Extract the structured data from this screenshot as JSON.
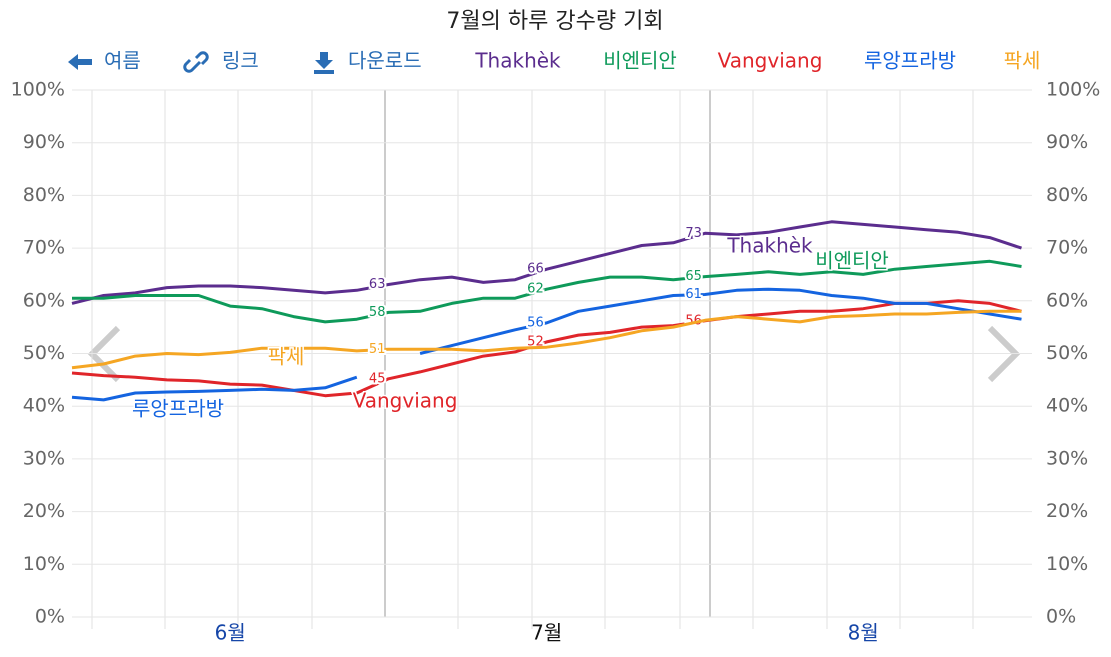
{
  "toolbar": {
    "back": "여름",
    "link": "링크",
    "download": "다운로드"
  },
  "chart_data": {
    "type": "line",
    "title": "7월의 하루 강수량 기회",
    "categories": [
      null,
      null,
      null,
      null,
      null,
      "6월",
      null,
      null,
      null,
      null,
      null,
      null,
      null,
      null,
      null,
      "7월",
      null,
      null,
      null,
      null,
      null,
      null,
      null,
      null,
      null,
      "8월",
      null,
      null,
      null,
      null,
      null
    ],
    "ylim": [
      0,
      100
    ],
    "yticks": [
      {
        "value": 0,
        "label": "0%"
      },
      {
        "value": 10,
        "label": "10%"
      },
      {
        "value": 20,
        "label": "20%"
      },
      {
        "value": 30,
        "label": "30%"
      },
      {
        "value": 40,
        "label": "40%"
      },
      {
        "value": 50,
        "label": "50%"
      },
      {
        "value": 60,
        "label": "60%"
      },
      {
        "value": 70,
        "label": "70%"
      },
      {
        "value": 80,
        "label": "80%"
      },
      {
        "value": 90,
        "label": "90%"
      },
      {
        "value": 100,
        "label": "100%"
      }
    ],
    "grid": true,
    "series": [
      {
        "name": "Thakhèk",
        "color": "#5b2d8e",
        "values": [
          59.5,
          61,
          61.5,
          62.5,
          62.8,
          62.8,
          62.5,
          62,
          61.5,
          62,
          63.1,
          64,
          64.5,
          63.5,
          64,
          66,
          67.5,
          69,
          70.5,
          71,
          72.8,
          72.5,
          73,
          74,
          75,
          74.5,
          74,
          73.5,
          73,
          72,
          70
        ],
        "value_labels": [
          null,
          null,
          null,
          null,
          null,
          null,
          null,
          null,
          null,
          null,
          "63",
          null,
          null,
          null,
          null,
          "66",
          null,
          null,
          null,
          null,
          "73",
          null,
          null,
          null,
          null,
          null,
          null,
          null,
          null,
          null,
          null
        ]
      },
      {
        "name": "비엔티안",
        "color": "#0e9a5a",
        "values": [
          60.5,
          60.5,
          61,
          61,
          61,
          59,
          58.5,
          57,
          56,
          56.5,
          57.8,
          58,
          59.5,
          60.5,
          60.5,
          62.2,
          63.5,
          64.5,
          64.5,
          64,
          64.6,
          65,
          65.5,
          65,
          65.5,
          65,
          66,
          66.5,
          67,
          67.5,
          66.5
        ],
        "value_labels": [
          null,
          null,
          null,
          null,
          null,
          null,
          null,
          null,
          null,
          null,
          "58",
          null,
          null,
          null,
          null,
          "62",
          null,
          null,
          null,
          null,
          "65",
          null,
          null,
          null,
          null,
          null,
          null,
          null,
          null,
          null,
          null
        ]
      },
      {
        "name": "Vangviang",
        "color": "#e0252a",
        "values": [
          46.3,
          45.8,
          45.5,
          45,
          44.8,
          44.2,
          44,
          43,
          42,
          42.5,
          45.2,
          46.5,
          48,
          49.5,
          50.3,
          52.2,
          53.5,
          54,
          55,
          55.3,
          56.2,
          57,
          57.5,
          58,
          58,
          58.5,
          59.5,
          59.5,
          60,
          59.5,
          58
        ],
        "value_labels": [
          null,
          null,
          null,
          null,
          null,
          null,
          null,
          null,
          null,
          null,
          "45",
          null,
          null,
          null,
          null,
          "52",
          null,
          null,
          null,
          null,
          "56",
          null,
          null,
          null,
          null,
          null,
          null,
          null,
          null,
          null,
          null
        ]
      },
      {
        "name": "루앙프라방",
        "color": "#1464e0",
        "values": [
          41.7,
          41.2,
          42.5,
          42.7,
          42.8,
          43,
          43.2,
          43,
          43.5,
          45.5,
          null,
          50,
          51.5,
          53,
          54.5,
          55.8,
          58,
          59,
          60,
          61,
          61.2,
          62,
          62.2,
          62,
          61,
          60.5,
          59.5,
          59.5,
          58.5,
          57.5,
          56.5
        ],
        "value_labels": [
          null,
          null,
          null,
          null,
          null,
          null,
          null,
          null,
          null,
          null,
          null,
          null,
          null,
          null,
          null,
          "56",
          null,
          null,
          null,
          null,
          "61",
          null,
          null,
          null,
          null,
          null,
          null,
          null,
          null,
          null,
          null
        ]
      },
      {
        "name": "팍세",
        "color": "#f5a623",
        "values": [
          47.3,
          48,
          49.5,
          50,
          49.8,
          50.2,
          51,
          51,
          51,
          50.5,
          50.8,
          50.8,
          50.8,
          50.5,
          51,
          51.2,
          52,
          53,
          54.3,
          55,
          56.3,
          57,
          56.5,
          56,
          57,
          57.2,
          57.5,
          57.5,
          57.8,
          58,
          58
        ],
        "value_labels": [
          null,
          null,
          null,
          null,
          null,
          null,
          null,
          null,
          null,
          null,
          "51",
          null,
          null,
          null,
          null,
          null,
          null,
          null,
          null,
          null,
          null,
          null,
          null,
          null,
          null,
          null,
          null,
          null,
          null,
          null,
          null
        ]
      }
    ]
  }
}
